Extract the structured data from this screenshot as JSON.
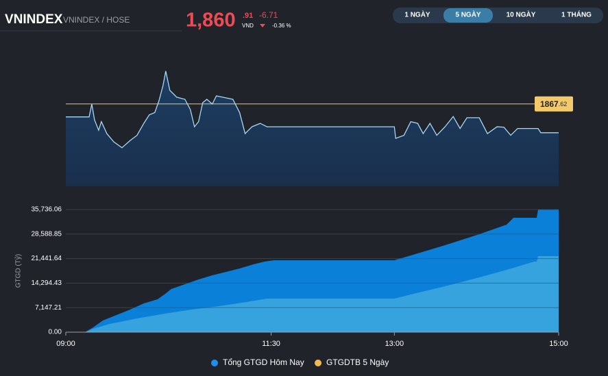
{
  "header": {
    "symbol": "VNINDEX",
    "exchange": "VNINDEX / HOSE",
    "price_int": "1,860",
    "price_dec": ".91",
    "currency": "VND",
    "change": "-6.71",
    "change_pct": "-0.36 %"
  },
  "buttons": [
    "1 NGÀY",
    "5 NGÀY",
    "10 NGÀY",
    "1 THÁNG"
  ],
  "chart_data": [
    {
      "type": "line",
      "color": "#a9d8f2",
      "xlim": [
        540,
        900
      ],
      "ylim": [
        1848.4,
        1876.7
      ],
      "reference": {
        "value": 1867.62,
        "label": "1867.62",
        "color": "#f3c969"
      },
      "x": [
        540,
        557,
        559,
        561,
        564,
        566,
        570,
        575,
        581,
        587,
        592,
        597,
        601,
        605,
        608,
        611,
        613,
        616,
        621,
        627,
        631,
        634,
        637,
        640,
        643,
        647,
        650,
        656,
        662,
        667,
        671,
        676,
        682,
        687,
        780,
        781,
        787,
        792,
        797,
        801,
        806,
        811,
        817,
        823,
        828,
        833,
        842,
        848,
        855,
        860,
        865,
        870,
        885,
        887,
        900
      ],
      "values": [
        1864.6,
        1864.6,
        1867.6,
        1863.9,
        1861.5,
        1863.5,
        1860.7,
        1858.8,
        1857.4,
        1859.1,
        1860.3,
        1863.1,
        1865.1,
        1865.6,
        1868.3,
        1871.9,
        1875.3,
        1870.8,
        1869.2,
        1868.7,
        1866.3,
        1862.3,
        1863.5,
        1867.9,
        1868.7,
        1867.6,
        1869.5,
        1869.1,
        1868.7,
        1865.6,
        1860.7,
        1862.3,
        1863.1,
        1862.3,
        1862.3,
        1859.6,
        1860.3,
        1863.5,
        1863.1,
        1860.7,
        1863.1,
        1860.3,
        1862.3,
        1864.7,
        1861.9,
        1864.4,
        1864.4,
        1860.7,
        1862.3,
        1862.2,
        1860.3,
        1861.9,
        1861.9,
        1860.9,
        1860.9
      ]
    },
    {
      "type": "area",
      "y_label": "GTGD (Tỷ)",
      "xlim": [
        540,
        900
      ],
      "ylim": [
        0,
        35736.06
      ],
      "grid": true,
      "yticks": [
        {
          "value": 0,
          "label": "0.00"
        },
        {
          "value": 7147.21,
          "label": "7,147.21"
        },
        {
          "value": 14294.43,
          "label": "14,294.43"
        },
        {
          "value": 21441.64,
          "label": "21,441.64"
        },
        {
          "value": 28588.85,
          "label": "28,588.85"
        },
        {
          "value": 35736.06,
          "label": "35,736.06"
        }
      ],
      "xticks": [
        {
          "value": 540,
          "label": "09:00"
        },
        {
          "value": 690,
          "label": "11:30"
        },
        {
          "value": 780,
          "label": "13:00"
        },
        {
          "value": 900,
          "label": "15:00"
        }
      ],
      "series": [
        {
          "name": "Tổng GTGD Hôm Nay",
          "color": "#0a80d8",
          "legend_color": "#1e90f0",
          "x": [
            540,
            554,
            560,
            567,
            577,
            587,
            597,
            607,
            612,
            617,
            627,
            637,
            647,
            657,
            667,
            677,
            685,
            692,
            780,
            792,
            817,
            842,
            862,
            867,
            884,
            885,
            900
          ],
          "values": [
            0,
            0,
            1397,
            3393,
            4990,
            6587,
            8383,
            9581,
            10978,
            12575,
            13972,
            15369,
            16567,
            17565,
            18563,
            19760,
            20559,
            20958,
            20958,
            22355,
            25349,
            28543,
            31337,
            33333,
            33333,
            35736,
            35736
          ]
        },
        {
          "name": "GTGDTB 5 Ngày",
          "color": "#36a2de",
          "legend_color": "#f7b84f",
          "x": [
            540,
            554,
            560,
            572,
            592,
            612,
            632,
            652,
            672,
            687,
            780,
            792,
            817,
            842,
            862,
            872,
            882,
            884,
            885,
            900
          ],
          "values": [
            0,
            0,
            999,
            2395,
            3992,
            5389,
            6587,
            7585,
            8782,
            9780,
            9780,
            10978,
            13373,
            15968,
            18164,
            19361,
            20559,
            20559,
            22156,
            22156
          ]
        }
      ]
    }
  ]
}
